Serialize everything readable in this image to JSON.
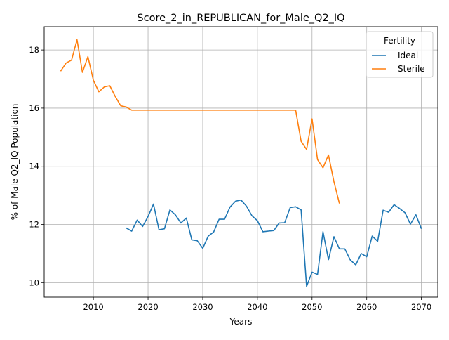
{
  "chart_data": {
    "type": "line",
    "title": "Score_2_in_REPUBLICAN_for_Male_Q2_IQ",
    "xlabel": "Years",
    "ylabel": "% of Male Q2_IQ Population",
    "xlim": [
      2001,
      2073
    ],
    "ylim": [
      9.5,
      18.8
    ],
    "x_ticks": [
      2010,
      2020,
      2030,
      2040,
      2050,
      2060,
      2070
    ],
    "y_ticks": [
      10,
      12,
      14,
      16,
      18
    ],
    "grid": true,
    "legend": {
      "title": "Fertility",
      "placement": "top-right"
    },
    "series": [
      {
        "name": "Ideal",
        "color": "#1f77b4",
        "x": [
          2016,
          2017,
          2018,
          2019,
          2020,
          2021,
          2022,
          2023,
          2024,
          2025,
          2026,
          2027,
          2028,
          2029,
          2030,
          2031,
          2032,
          2033,
          2034,
          2035,
          2036,
          2037,
          2038,
          2039,
          2040,
          2041,
          2042,
          2043,
          2044,
          2045,
          2046,
          2047,
          2048,
          2049,
          2050,
          2051,
          2052,
          2053,
          2054,
          2055,
          2056,
          2057,
          2058,
          2059,
          2060,
          2061,
          2062,
          2063,
          2064,
          2065,
          2066,
          2067,
          2068,
          2069,
          2070
        ],
        "values": [
          11.88,
          11.77,
          12.15,
          11.93,
          12.27,
          12.7,
          11.82,
          11.85,
          12.5,
          12.33,
          12.05,
          12.22,
          11.47,
          11.44,
          11.18,
          11.6,
          11.74,
          12.18,
          12.18,
          12.6,
          12.8,
          12.84,
          12.63,
          12.3,
          12.13,
          11.75,
          11.77,
          11.79,
          12.05,
          12.06,
          12.58,
          12.61,
          12.5,
          9.87,
          10.36,
          10.28,
          11.75,
          10.79,
          11.58,
          11.16,
          11.16,
          10.78,
          10.61,
          11.0,
          10.89,
          11.6,
          11.42,
          12.49,
          12.42,
          12.68,
          12.55,
          12.4,
          12.01,
          12.33,
          11.85
        ]
      },
      {
        "name": "Sterile",
        "color": "#ff7f0e",
        "x": [
          2004,
          2005,
          2006,
          2007,
          2008,
          2009,
          2010,
          2011,
          2012,
          2013,
          2014,
          2015,
          2016,
          2017,
          2018,
          2019,
          2020,
          2021,
          2022,
          2023,
          2024,
          2025,
          2026,
          2027,
          2028,
          2029,
          2030,
          2031,
          2032,
          2033,
          2034,
          2035,
          2036,
          2037,
          2038,
          2039,
          2040,
          2041,
          2042,
          2043,
          2044,
          2045,
          2046,
          2047,
          2048,
          2049,
          2050,
          2051,
          2052,
          2053,
          2054,
          2055
        ],
        "values": [
          17.27,
          17.55,
          17.65,
          18.35,
          17.23,
          17.77,
          16.96,
          16.56,
          16.73,
          16.77,
          16.4,
          16.08,
          16.04,
          15.93,
          15.93,
          15.93,
          15.93,
          15.93,
          15.93,
          15.93,
          15.93,
          15.93,
          15.93,
          15.93,
          15.93,
          15.93,
          15.93,
          15.93,
          15.93,
          15.93,
          15.93,
          15.93,
          15.93,
          15.93,
          15.93,
          15.93,
          15.93,
          15.93,
          15.93,
          15.93,
          15.93,
          15.93,
          15.93,
          15.93,
          14.86,
          14.58,
          15.63,
          14.23,
          13.95,
          14.39,
          13.47,
          12.72
        ]
      }
    ]
  }
}
